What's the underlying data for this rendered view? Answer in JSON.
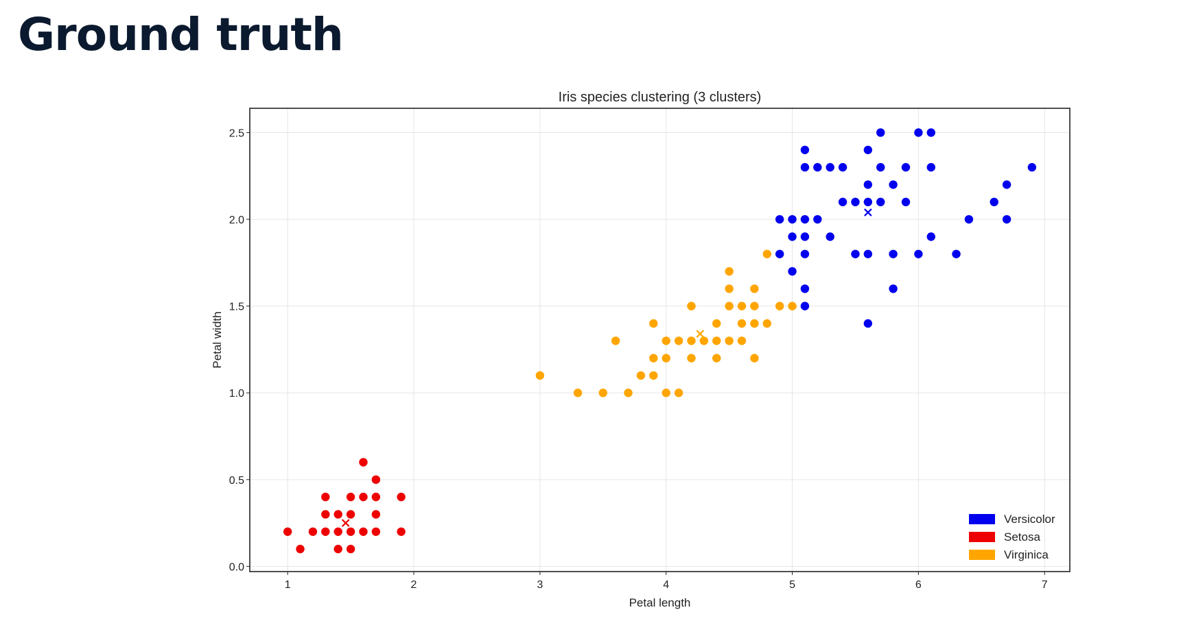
{
  "page": {
    "heading": "Ground truth"
  },
  "chart_data": {
    "type": "scatter",
    "title": "Iris species clustering (3 clusters)",
    "xlabel": "Petal length",
    "ylabel": "Petal width",
    "xlim": [
      0.7,
      7.2
    ],
    "ylim": [
      -0.03,
      2.64
    ],
    "x_ticks": [
      1,
      2,
      3,
      4,
      5,
      6,
      7
    ],
    "y_ticks": [
      0.0,
      0.5,
      1.0,
      1.5,
      2.0,
      2.5
    ],
    "y_tick_labels": [
      "0.0",
      "0.5",
      "1.0",
      "1.5",
      "2.0",
      "2.5"
    ],
    "grid": true,
    "legend_position": "bottom-right",
    "series": [
      {
        "name": "Versicolor",
        "color": "#0000ee",
        "points": [
          [
            5.1,
            2.4
          ],
          [
            5.6,
            2.4
          ],
          [
            5.7,
            2.5
          ],
          [
            6.0,
            2.5
          ],
          [
            6.1,
            2.5
          ],
          [
            5.1,
            2.3
          ],
          [
            5.2,
            2.3
          ],
          [
            5.3,
            2.3
          ],
          [
            5.4,
            2.3
          ],
          [
            5.7,
            2.3
          ],
          [
            5.9,
            2.3
          ],
          [
            6.1,
            2.3
          ],
          [
            6.9,
            2.3
          ],
          [
            5.6,
            2.2
          ],
          [
            5.8,
            2.2
          ],
          [
            6.7,
            2.2
          ],
          [
            5.4,
            2.1
          ],
          [
            5.5,
            2.1
          ],
          [
            5.6,
            2.1
          ],
          [
            5.7,
            2.1
          ],
          [
            5.9,
            2.1
          ],
          [
            6.6,
            2.1
          ],
          [
            4.9,
            2.0
          ],
          [
            5.0,
            2.0
          ],
          [
            5.1,
            2.0
          ],
          [
            5.2,
            2.0
          ],
          [
            6.4,
            2.0
          ],
          [
            6.7,
            2.0
          ],
          [
            5.0,
            1.9
          ],
          [
            5.1,
            1.9
          ],
          [
            5.3,
            1.9
          ],
          [
            6.1,
            1.9
          ],
          [
            4.9,
            1.8
          ],
          [
            5.1,
            1.8
          ],
          [
            5.5,
            1.8
          ],
          [
            5.6,
            1.8
          ],
          [
            5.8,
            1.8
          ],
          [
            6.0,
            1.8
          ],
          [
            6.3,
            1.8
          ],
          [
            5.0,
            1.7
          ],
          [
            5.1,
            1.6
          ],
          [
            5.8,
            1.6
          ],
          [
            5.1,
            1.5
          ],
          [
            5.6,
            1.4
          ]
        ],
        "centroid": [
          5.6,
          2.04
        ]
      },
      {
        "name": "Setosa",
        "color": "#ee0000",
        "points": [
          [
            1.6,
            0.6
          ],
          [
            1.7,
            0.5
          ],
          [
            1.3,
            0.4
          ],
          [
            1.5,
            0.4
          ],
          [
            1.6,
            0.4
          ],
          [
            1.7,
            0.4
          ],
          [
            1.9,
            0.4
          ],
          [
            1.3,
            0.3
          ],
          [
            1.4,
            0.3
          ],
          [
            1.5,
            0.3
          ],
          [
            1.7,
            0.3
          ],
          [
            1.0,
            0.2
          ],
          [
            1.2,
            0.2
          ],
          [
            1.3,
            0.2
          ],
          [
            1.4,
            0.2
          ],
          [
            1.5,
            0.2
          ],
          [
            1.6,
            0.2
          ],
          [
            1.7,
            0.2
          ],
          [
            1.9,
            0.2
          ],
          [
            1.1,
            0.1
          ],
          [
            1.4,
            0.1
          ],
          [
            1.5,
            0.1
          ]
        ],
        "centroid": [
          1.46,
          0.25
        ]
      },
      {
        "name": "Virginica",
        "color": "#ffa500",
        "points": [
          [
            4.8,
            1.8
          ],
          [
            4.5,
            1.7
          ],
          [
            4.5,
            1.6
          ],
          [
            4.7,
            1.6
          ],
          [
            4.2,
            1.5
          ],
          [
            4.5,
            1.5
          ],
          [
            4.6,
            1.5
          ],
          [
            4.7,
            1.5
          ],
          [
            4.9,
            1.5
          ],
          [
            5.0,
            1.5
          ],
          [
            3.9,
            1.4
          ],
          [
            4.4,
            1.4
          ],
          [
            4.6,
            1.4
          ],
          [
            4.7,
            1.4
          ],
          [
            4.8,
            1.4
          ],
          [
            3.6,
            1.3
          ],
          [
            4.0,
            1.3
          ],
          [
            4.1,
            1.3
          ],
          [
            4.2,
            1.3
          ],
          [
            4.3,
            1.3
          ],
          [
            4.4,
            1.3
          ],
          [
            4.5,
            1.3
          ],
          [
            4.6,
            1.3
          ],
          [
            3.9,
            1.2
          ],
          [
            4.0,
            1.2
          ],
          [
            4.2,
            1.2
          ],
          [
            4.4,
            1.2
          ],
          [
            4.7,
            1.2
          ],
          [
            3.0,
            1.1
          ],
          [
            3.8,
            1.1
          ],
          [
            3.9,
            1.1
          ],
          [
            3.3,
            1.0
          ],
          [
            3.5,
            1.0
          ],
          [
            3.7,
            1.0
          ],
          [
            4.0,
            1.0
          ],
          [
            4.1,
            1.0
          ]
        ],
        "centroid": [
          4.27,
          1.34
        ]
      }
    ]
  }
}
